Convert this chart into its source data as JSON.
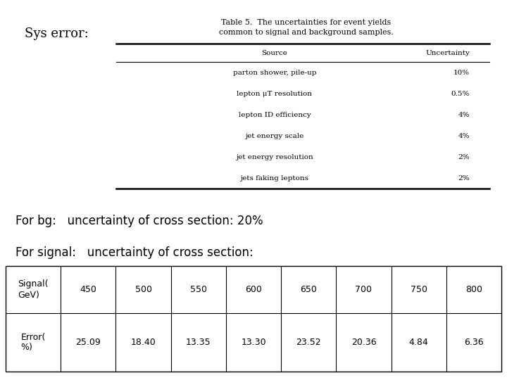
{
  "sys_error_label": "Sys error:",
  "table_title_line1": "Table 5.  The uncertainties for event yields",
  "table_title_line2": "common to signal and background samples.",
  "table_headers": [
    "Source",
    "Uncertainty"
  ],
  "table_rows": [
    [
      "parton shower, pile-up",
      "10%"
    ],
    [
      "lepton μT resolution",
      "0.5%"
    ],
    [
      "lepton ID efficiency",
      "4%"
    ],
    [
      "jet energy scale",
      "4%"
    ],
    [
      "jet energy resolution",
      "2%"
    ],
    [
      "jets faking leptons",
      "2%"
    ]
  ],
  "bg_text": "For bg:   uncertainty of cross section: 20%",
  "signal_text": "For signal:   uncertainty of cross section:",
  "signal_table_row1": [
    "Signal(\nGeV)",
    "450",
    "500",
    "550",
    "600",
    "650",
    "700",
    "750",
    "800"
  ],
  "signal_table_row2": [
    "Error(\n%)",
    "25.09",
    "18.40",
    "13.35",
    "13.30",
    "23.52",
    "20.36",
    "4.84",
    "6.36"
  ],
  "bg_color": "white",
  "text_color": "black",
  "font_size_label": 13,
  "font_size_table_title": 8,
  "font_size_table_body": 7.5,
  "font_size_text": 12,
  "font_size_signal_table": 9
}
